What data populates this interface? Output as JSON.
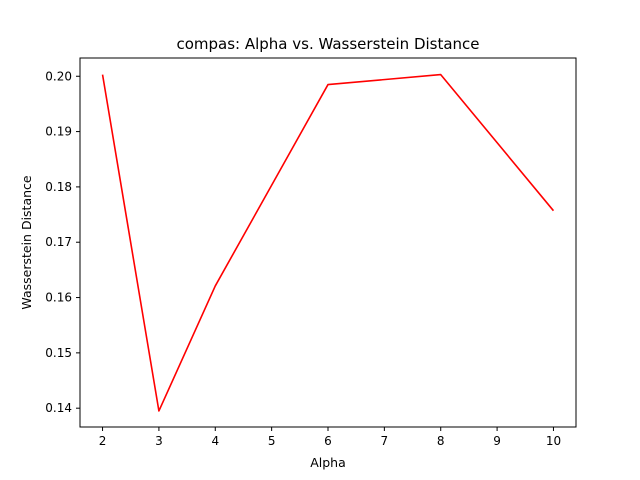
{
  "chart_data": {
    "type": "line",
    "title": "compas: Alpha vs. Wasserstein Distance",
    "xlabel": "Alpha",
    "ylabel": "Wasserstein Distance",
    "xlim": [
      1.6,
      10.4
    ],
    "ylim": [
      0.1366,
      0.2033
    ],
    "xticks": [
      2,
      3,
      4,
      5,
      6,
      7,
      8,
      9,
      10
    ],
    "yticks": [
      0.14,
      0.15,
      0.16,
      0.17,
      0.18,
      0.19,
      0.2
    ],
    "ytick_labels": [
      "0.14",
      "0.15",
      "0.16",
      "0.17",
      "0.18",
      "0.19",
      "0.20"
    ],
    "grid": false,
    "series": [
      {
        "color": "#ff0000",
        "x": [
          2,
          3,
          4,
          6,
          8,
          10
        ],
        "y": [
          0.2003,
          0.1395,
          0.1621,
          0.1985,
          0.2003,
          0.1757
        ]
      }
    ]
  }
}
